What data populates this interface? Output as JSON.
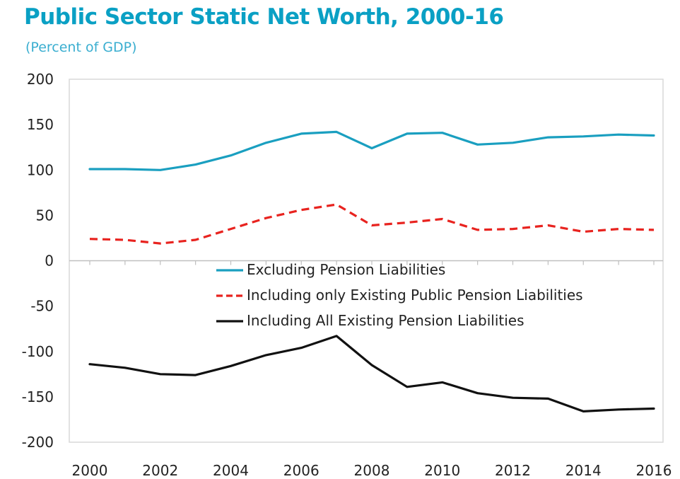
{
  "chart_data": {
    "type": "line",
    "title": "Public Sector Static Net Worth, 2000-16",
    "subtitle": "(Percent of GDP)",
    "xlabel": "",
    "ylabel": "",
    "ylim": [
      -200,
      200
    ],
    "yticks": [
      200,
      150,
      100,
      50,
      0,
      -50,
      -100,
      -150,
      -200
    ],
    "xticks": [
      2000,
      2002,
      2004,
      2006,
      2008,
      2010,
      2012,
      2014,
      2016
    ],
    "x": [
      2000,
      2001,
      2002,
      2003,
      2004,
      2005,
      2006,
      2007,
      2008,
      2009,
      2010,
      2011,
      2012,
      2013,
      2014,
      2015,
      2016
    ],
    "grid": false,
    "legend_position": "center",
    "series": [
      {
        "name": "Excluding Pension Liabilities",
        "color": "#1a9fc0",
        "style": "solid",
        "values": [
          101,
          101,
          100,
          106,
          116,
          130,
          140,
          142,
          124,
          140,
          141,
          128,
          130,
          136,
          137,
          139,
          138
        ]
      },
      {
        "name": "Including only Existing Public Pension Liabilities",
        "color": "#e8231f",
        "style": "dashed",
        "values": [
          24,
          23,
          19,
          23,
          35,
          47,
          56,
          62,
          39,
          42,
          46,
          34,
          35,
          39,
          32,
          35,
          34
        ]
      },
      {
        "name": "Including All Existing Pension Liabilities",
        "color": "#111111",
        "style": "solid",
        "values": [
          -114,
          -118,
          -125,
          -126,
          -116,
          -104,
          -96,
          -83,
          -115,
          -139,
          -134,
          -146,
          -151,
          -152,
          -166,
          -164,
          -163
        ]
      }
    ]
  }
}
